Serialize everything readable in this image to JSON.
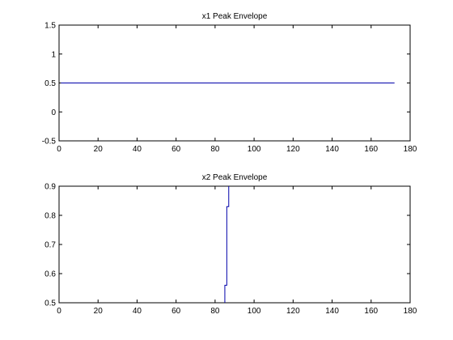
{
  "chart_data": [
    {
      "type": "line",
      "title": "x1 Peak Envelope",
      "xlabel": "",
      "ylabel": "",
      "xlim": [
        0,
        180
      ],
      "ylim": [
        -0.5,
        1.5
      ],
      "xticks": [
        0,
        20,
        40,
        60,
        80,
        100,
        120,
        140,
        160,
        180
      ],
      "xtick_labels": [
        "0",
        "20",
        "40",
        "60",
        "80",
        "100",
        "120",
        "140",
        "160",
        "180"
      ],
      "yticks": [
        -0.5,
        0,
        0.5,
        1,
        1.5
      ],
      "ytick_labels": [
        "-0.5",
        "0",
        "0.5",
        "1",
        "1.5"
      ],
      "grid": false,
      "series": [
        {
          "color": "#0000aa",
          "x": [
            1,
            172
          ],
          "y": [
            0.5,
            0.5
          ]
        }
      ]
    },
    {
      "type": "line",
      "title": "x2 Peak Envelope",
      "xlabel": "",
      "ylabel": "",
      "xlim": [
        0,
        180
      ],
      "ylim": [
        0.5,
        0.9
      ],
      "xticks": [
        0,
        20,
        40,
        60,
        80,
        100,
        120,
        140,
        160,
        180
      ],
      "xtick_labels": [
        "0",
        "20",
        "40",
        "60",
        "80",
        "100",
        "120",
        "140",
        "160",
        "180"
      ],
      "yticks": [
        0.5,
        0.6,
        0.7,
        0.8,
        0.9
      ],
      "ytick_labels": [
        "0.5",
        "0.6",
        "0.7",
        "0.8",
        "0.9"
      ],
      "grid": false,
      "series": [
        {
          "color": "#0000aa",
          "x": [
            85,
            85,
            86,
            86,
            87,
            87
          ],
          "y": [
            0.5,
            0.56,
            0.56,
            0.83,
            0.83,
            0.9
          ]
        }
      ]
    }
  ]
}
